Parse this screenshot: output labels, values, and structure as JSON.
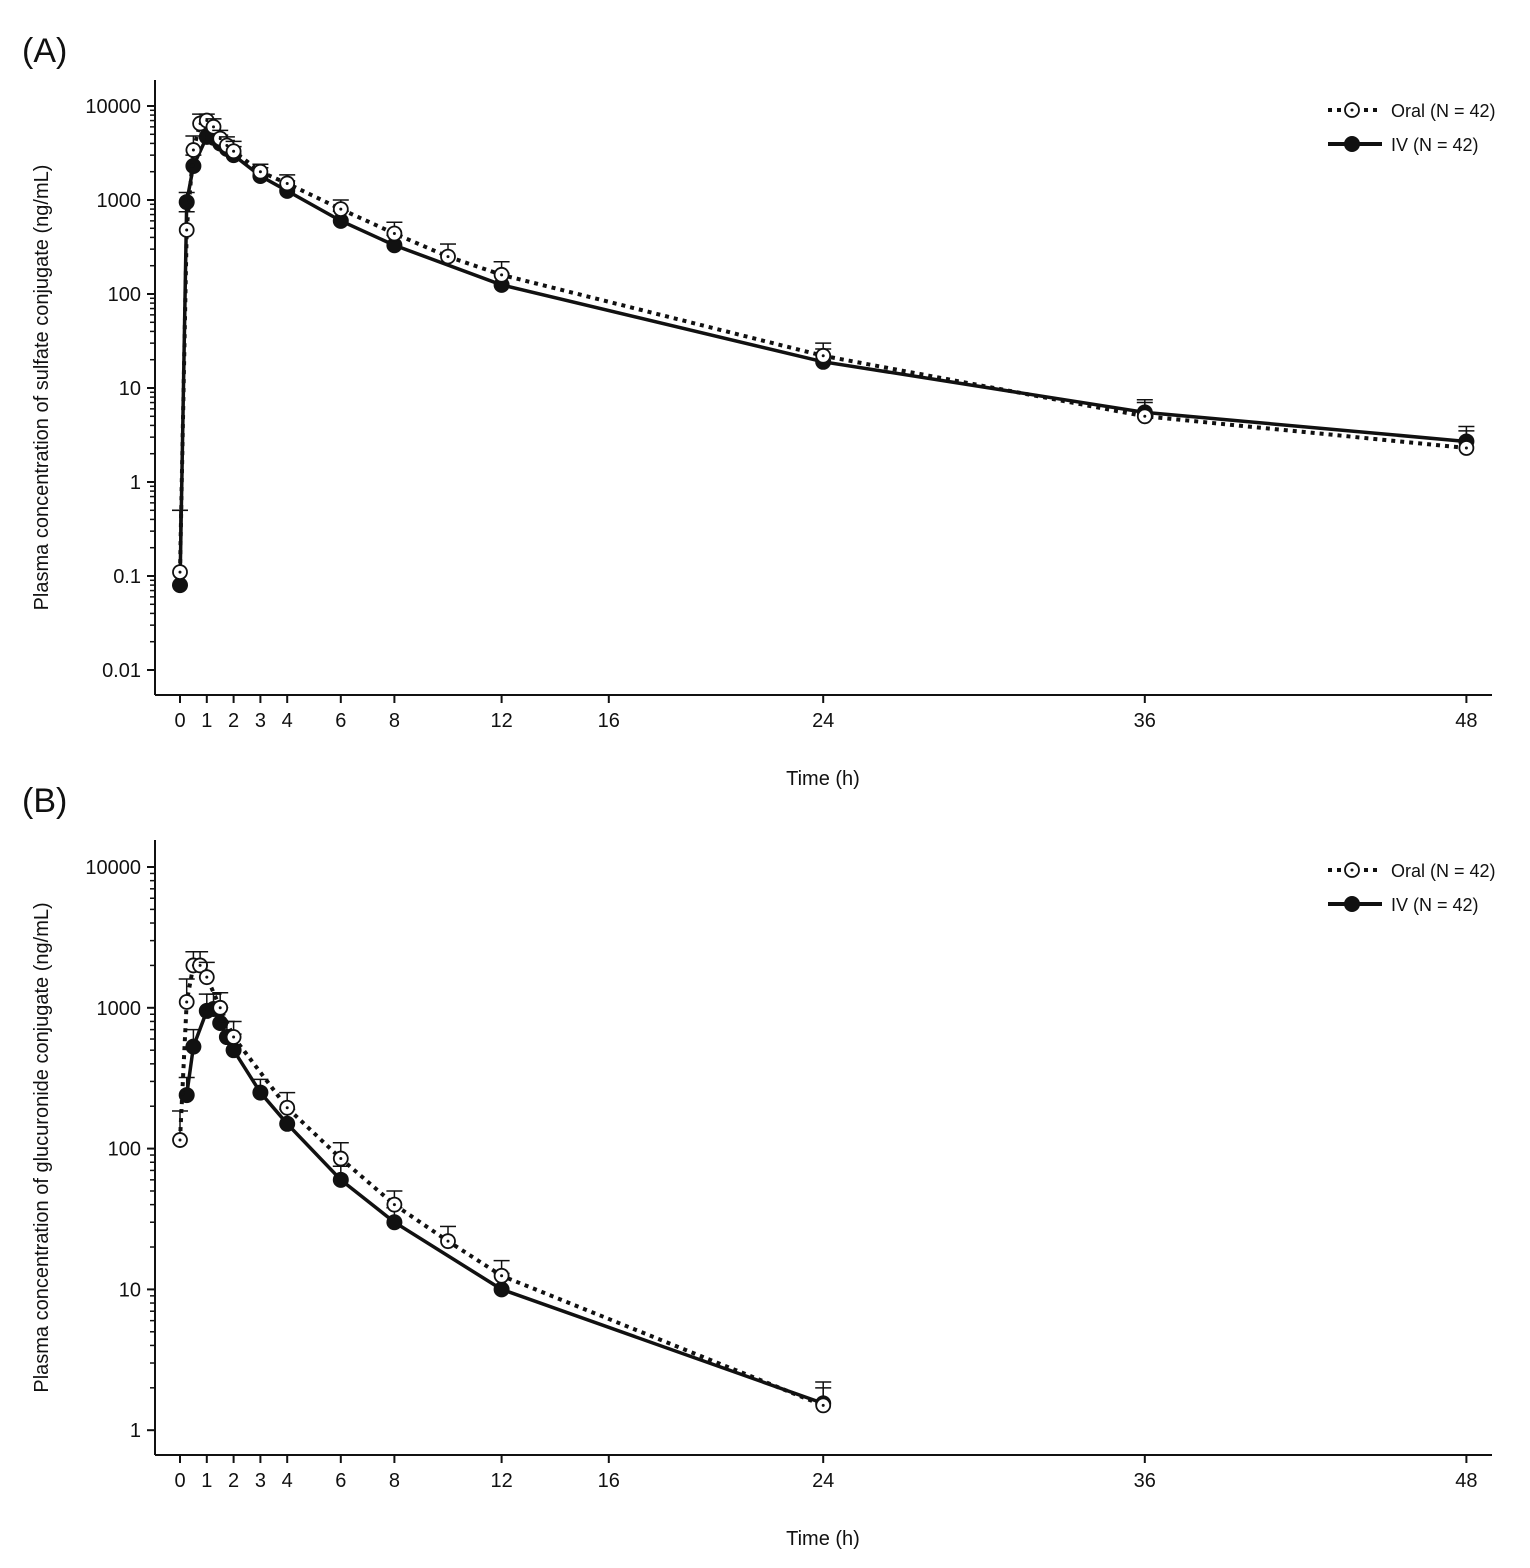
{
  "chart_data": [
    {
      "type": "line",
      "panel_label": "(A)",
      "xlabel": "Time (h)",
      "ylabel": "Plasma concentration of sulfate conjugate (ng/mL)",
      "yscale": "log",
      "xlim": [
        0,
        48
      ],
      "ylim": [
        0.01,
        10000
      ],
      "xticks": [
        "0",
        "1",
        "2",
        "3",
        "4",
        "6",
        "8",
        "12",
        "16",
        "24",
        "36",
        "48"
      ],
      "xtick_values": [
        0,
        1,
        2,
        3,
        4,
        6,
        8,
        12,
        16,
        24,
        36,
        48
      ],
      "yticks": [
        "0.01",
        "0.1",
        "1",
        "10",
        "100",
        "1000",
        "10000"
      ],
      "ytick_values": [
        0.01,
        0.1,
        1,
        10,
        100,
        1000,
        10000
      ],
      "grid": false,
      "legend_position": "top-right",
      "series": [
        {
          "name": "Oral (N = 42)",
          "style": "dotted-open-circle",
          "x": [
            0,
            0.25,
            0.5,
            0.75,
            1,
            1.25,
            1.5,
            1.75,
            2,
            3,
            4,
            6,
            8,
            10,
            12,
            24,
            36,
            48
          ],
          "y": [
            0.11,
            480,
            3400,
            6500,
            7000,
            6000,
            4500,
            3800,
            3300,
            2000,
            1500,
            800,
            440,
            250,
            160,
            22,
            5,
            2.3
          ],
          "err_upper": [
            0.5,
            750,
            4800,
            8200,
            8200,
            7300,
            5500,
            4700,
            4200,
            2400,
            1850,
            1000,
            580,
            340,
            220,
            30,
            7,
            3.5
          ]
        },
        {
          "name": "IV (N = 42)",
          "style": "solid-filled-circle",
          "x": [
            0,
            0.25,
            0.5,
            1,
            1.25,
            1.5,
            1.75,
            2,
            3,
            4,
            6,
            8,
            12,
            24,
            36,
            48
          ],
          "y": [
            0.08,
            950,
            2300,
            4700,
            4600,
            4000,
            3500,
            3000,
            1800,
            1250,
            600,
            330,
            125,
            19,
            5.5,
            2.7
          ],
          "err_upper": [
            0.5,
            1200,
            3000,
            5600,
            5500,
            4900,
            4300,
            3700,
            2200,
            1600,
            760,
            420,
            165,
            26,
            7.5,
            3.9
          ]
        }
      ]
    },
    {
      "type": "line",
      "panel_label": "(B)",
      "xlabel": "Time (h)",
      "ylabel": "Plasma concentration of glucuronide conjugate (ng/mL)",
      "yscale": "log",
      "xlim": [
        0,
        48
      ],
      "ylim": [
        1,
        10000
      ],
      "xticks": [
        "0",
        "1",
        "2",
        "3",
        "4",
        "6",
        "8",
        "12",
        "16",
        "24",
        "36",
        "48"
      ],
      "xtick_values": [
        0,
        1,
        2,
        3,
        4,
        6,
        8,
        12,
        16,
        24,
        36,
        48
      ],
      "yticks": [
        "1",
        "10",
        "100",
        "1000",
        "10000"
      ],
      "ytick_values": [
        1,
        10,
        100,
        1000,
        10000
      ],
      "grid": false,
      "legend_position": "top-right",
      "series": [
        {
          "name": "Oral (N = 42)",
          "style": "dotted-open-circle",
          "x": [
            0,
            0.25,
            0.5,
            0.75,
            1,
            1.5,
            2,
            4,
            6,
            8,
            10,
            12,
            24
          ],
          "y": [
            115,
            1100,
            2000,
            2000,
            1650,
            1000,
            620,
            195,
            85,
            40,
            22,
            12.5,
            1.5
          ],
          "err_upper": [
            185,
            1600,
            2500,
            2500,
            2100,
            1280,
            800,
            250,
            110,
            50,
            28,
            16,
            2.2
          ]
        },
        {
          "name": "IV (N = 42)",
          "style": "solid-filled-circle",
          "x": [
            0.25,
            0.5,
            1,
            1.25,
            1.5,
            1.75,
            2,
            3,
            4,
            6,
            8,
            12,
            24
          ],
          "y": [
            240,
            530,
            950,
            980,
            780,
            620,
            500,
            250,
            150,
            60,
            30,
            10,
            1.55
          ],
          "err_upper": [
            320,
            700,
            1250,
            1250,
            1000,
            800,
            650,
            310,
            190,
            75,
            38,
            13,
            2.0
          ]
        }
      ]
    }
  ]
}
